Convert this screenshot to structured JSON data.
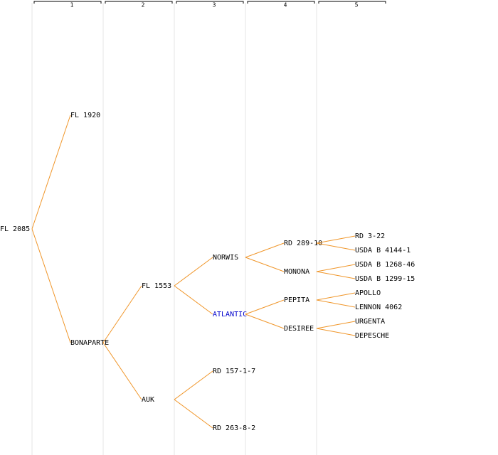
{
  "columns": [
    "1",
    "2",
    "3",
    "4",
    "5"
  ],
  "tree": {
    "label": "FL 2085",
    "children": [
      {
        "label": "FL 1920"
      },
      {
        "label": "BONAPARTE",
        "children": [
          {
            "label": "FL 1553",
            "children": [
              {
                "label": "NORWIS",
                "children": [
                  {
                    "label": "RD 289-10",
                    "children": [
                      {
                        "label": "RD 3-22"
                      },
                      {
                        "label": "USDA B 4144-1"
                      }
                    ]
                  },
                  {
                    "label": "MONONA",
                    "children": [
                      {
                        "label": "USDA B 1268-46"
                      },
                      {
                        "label": "USDA B 1299-15"
                      }
                    ]
                  }
                ]
              },
              {
                "label": "ATLANTIC",
                "highlighted": true,
                "children": [
                  {
                    "label": "PEPITA",
                    "children": [
                      {
                        "label": "APOLLO"
                      },
                      {
                        "label": "LENNON 4062"
                      }
                    ]
                  },
                  {
                    "label": "DESIREE",
                    "children": [
                      {
                        "label": "URGENTA"
                      },
                      {
                        "label": "DEPESCHE"
                      }
                    ]
                  }
                ]
              }
            ]
          },
          {
            "label": "AUK",
            "children": [
              {
                "label": "RD 157-1-7"
              },
              {
                "label": "RD 263-8-2"
              }
            ]
          }
        ]
      }
    ]
  }
}
